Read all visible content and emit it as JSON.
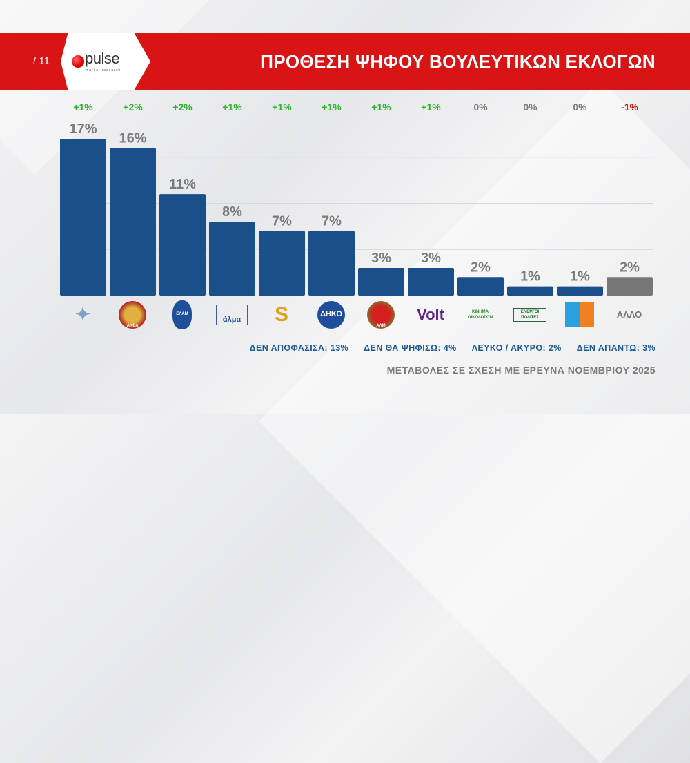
{
  "header": {
    "page": "/ 11",
    "brand": "pulse",
    "brand_sub": "market research",
    "title": "ΠΡΟΘΕΣΗ ΨΗΦΟΥ ΒΟΥΛΕΥΤΙΚΩΝ ΕΚΛΟΓΩΝ"
  },
  "chart_data": {
    "type": "bar",
    "title": "ΠΡΟΘΕΣΗ ΨΗΦΟΥ ΒΟΥΛΕΥΤΙΚΩΝ ΕΚΛΟΓΩΝ",
    "ylim": [
      0,
      18
    ],
    "grid": true,
    "categories": [
      "ΔΗΣΥ",
      "ΑΚΕΛ",
      "ΕΛΑΜ",
      "Άλμα",
      "Άμεση Δημοκρατία",
      "ΔΗΚΟ",
      "ΑΛΜ",
      "Volt",
      "Κίνημα Οικολόγων",
      "Ενεργοί Πολίτες",
      "Άλλο κόμμα",
      "ΑΛΛΟ"
    ],
    "values": [
      17,
      16,
      11,
      8,
      7,
      7,
      3,
      3,
      2,
      1,
      1,
      2
    ],
    "labels": [
      "17%",
      "16%",
      "11%",
      "8%",
      "7%",
      "7%",
      "3%",
      "3%",
      "2%",
      "1%",
      "1%",
      "2%"
    ],
    "changes": [
      "+1%",
      "+2%",
      "+2%",
      "+1%",
      "+1%",
      "+1%",
      "+1%",
      "+1%",
      "0%",
      "0%",
      "0%",
      "-1%"
    ],
    "logo_text": [
      "",
      "ΑΚΕΛ",
      "ΕΛΑΜ",
      "άλμα",
      "",
      "ΔΗΚΟ",
      "ΑΛΜ",
      "Volt",
      "ΚΙΝΗΜΑ ΟΙΚΟΛΟΓΩΝ",
      "ΕΝΕΡΓΟΙ ΠΟΛΙΤΕΣ",
      "",
      "ΑΛΛΟ"
    ],
    "colors": {
      "bar": "#1b4f8a",
      "other": "#777777",
      "positive": "#2bb52b",
      "neutral": "#7b7b7b",
      "negative": "#d81414"
    }
  },
  "footer": {
    "stats": [
      "ΔΕΝ ΑΠΟΦΑΣΙΣΑ: 13%",
      "ΔΕΝ ΘΑ ΨΗΦΙΣΩ: 4%",
      "ΛΕΥΚΟ / ΑΚΥΡΟ: 2%",
      "ΔΕΝ ΑΠΑΝΤΩ: 3%"
    ],
    "note": "ΜΕΤΑΒΟΛΕΣ ΣΕ ΣΧΕΣΗ ΜΕ ΕΡΕΥΝΑ ΝΟΕΜΒΡΙΟΥ 2025"
  }
}
